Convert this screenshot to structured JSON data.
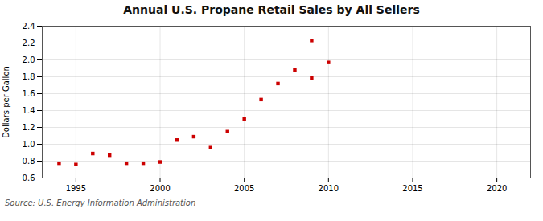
{
  "chart_data": {
    "type": "scatter",
    "title": "Annual U.S. Propane Retail Sales by All Sellers",
    "ylabel": "Dollars per Gallon",
    "caption": "Source: U.S. Energy Information Administration",
    "x": [
      1994,
      1995,
      1996,
      1997,
      1998,
      1999,
      2000,
      2001,
      2002,
      2003,
      2004,
      2005,
      2006,
      2007,
      2008,
      2009,
      2010,
      2009
    ],
    "values": [
      0.775,
      0.76,
      0.89,
      0.87,
      0.775,
      0.775,
      0.79,
      1.05,
      1.09,
      0.96,
      1.15,
      1.3,
      1.53,
      1.72,
      1.88,
      2.23,
      1.97,
      1.785
    ],
    "color": "#cc0000",
    "marker": "square",
    "xlim": [
      1993,
      2022
    ],
    "xticks": [
      1995,
      2000,
      2005,
      2010,
      2015,
      2020
    ],
    "ylim": [
      0.6,
      2.4
    ],
    "yticks": [
      0.6,
      0.8,
      {
        "value": 1.0,
        "label": "1.0"
      },
      1.2,
      1.4,
      1.6,
      1.8,
      {
        "value": 2.0,
        "label": "2.0"
      },
      2.2,
      2.4
    ],
    "grid": true
  }
}
